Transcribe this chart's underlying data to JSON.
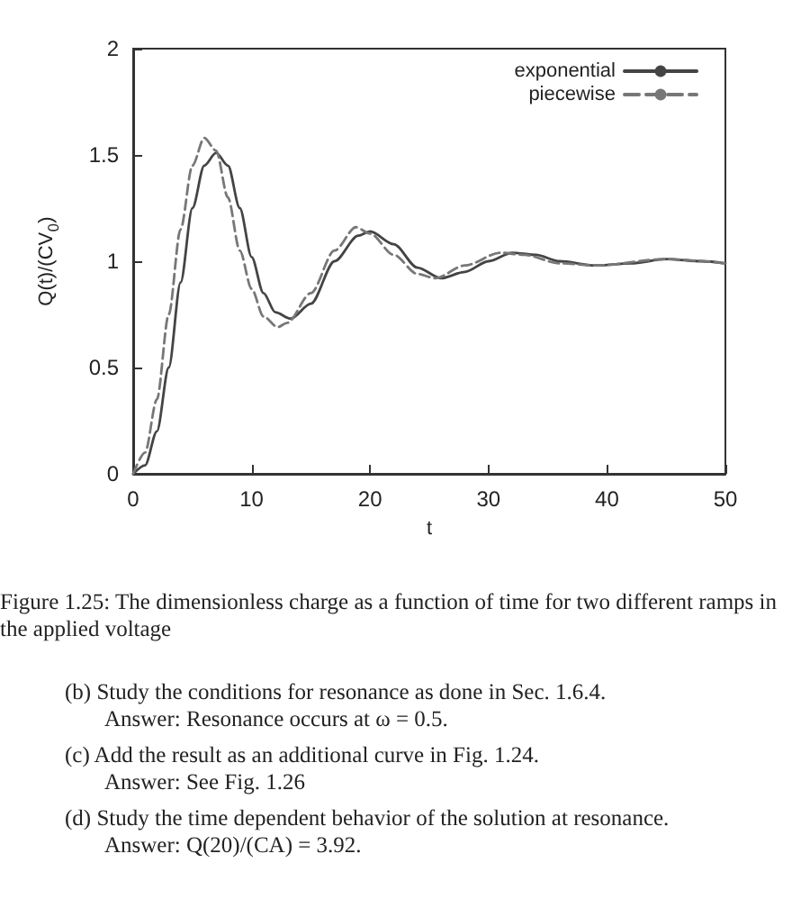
{
  "chart_data": {
    "type": "line",
    "xlabel": "t",
    "ylabel": "Q(t)/(CV$_{0}$)",
    "xlim": [
      0,
      50
    ],
    "xticks": [
      0,
      10,
      20,
      30,
      40,
      50
    ],
    "ylim": [
      0,
      2
    ],
    "yticks": [
      0,
      0.5,
      1,
      1.5,
      2
    ],
    "legend": "top right",
    "grid": false,
    "marker": "none",
    "series": [
      {
        "name": "exponential",
        "color": "#444444",
        "line_style": "solid",
        "x": [
          0,
          1,
          2,
          3,
          4,
          5,
          6,
          7,
          8,
          9,
          10,
          11,
          12,
          13.3,
          15,
          17,
          19,
          20,
          22,
          24,
          26,
          28,
          30,
          32,
          34,
          36,
          39,
          42,
          45,
          48,
          50
        ],
        "values": [
          0,
          0.04,
          0.2,
          0.5,
          0.9,
          1.25,
          1.45,
          1.51,
          1.45,
          1.25,
          1.02,
          0.85,
          0.76,
          0.73,
          0.8,
          1.0,
          1.12,
          1.14,
          1.08,
          0.97,
          0.92,
          0.95,
          1.0,
          1.04,
          1.03,
          1.0,
          0.98,
          0.99,
          1.01,
          1.0,
          0.99
        ]
      },
      {
        "name": "piecewise",
        "color": "#777777",
        "line_style": "dashed",
        "x": [
          0,
          1,
          2,
          3,
          4,
          5,
          6,
          7,
          8,
          9,
          10,
          11,
          12.2,
          13,
          15,
          17,
          18.8,
          20,
          22,
          24,
          25.5,
          28,
          31,
          33,
          36,
          39,
          45,
          50
        ],
        "values": [
          0,
          0.1,
          0.35,
          0.75,
          1.15,
          1.45,
          1.58,
          1.52,
          1.3,
          1.05,
          0.87,
          0.74,
          0.69,
          0.71,
          0.85,
          1.05,
          1.16,
          1.13,
          1.03,
          0.94,
          0.92,
          0.98,
          1.04,
          1.03,
          0.99,
          0.98,
          1.01,
          0.99
        ]
      }
    ],
    "annotations": [
      "Figure 1.25: The dimensionless charge as a function of time for two different ramps in the applied voltage",
      "(b) Study the conditions for resonance as done in Sec. 1.6.4.",
      "Answer: Resonance occurs at ω = 0.5.",
      "(c) Add the result as an additional curve in Fig. 1.24.",
      "Answer: See Fig. 1.26",
      "(d) Study the time dependent behavior of the solution at resonance.",
      "Answer: Q(20)/(CA) = 3.92."
    ]
  }
}
